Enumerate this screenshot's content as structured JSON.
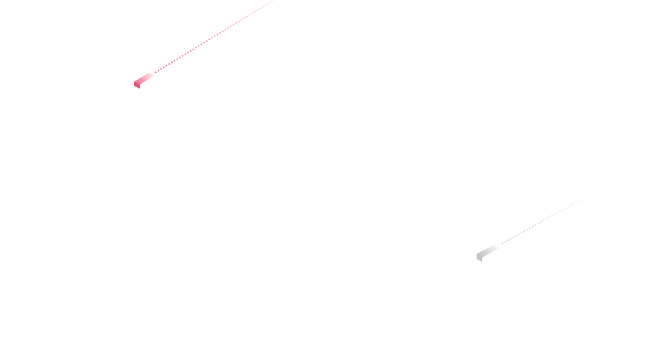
{
  "decorations": [
    {
      "name": "red-comet",
      "color": "#f0506e"
    },
    {
      "name": "gray-comet",
      "color": "#c4c4c4"
    }
  ]
}
